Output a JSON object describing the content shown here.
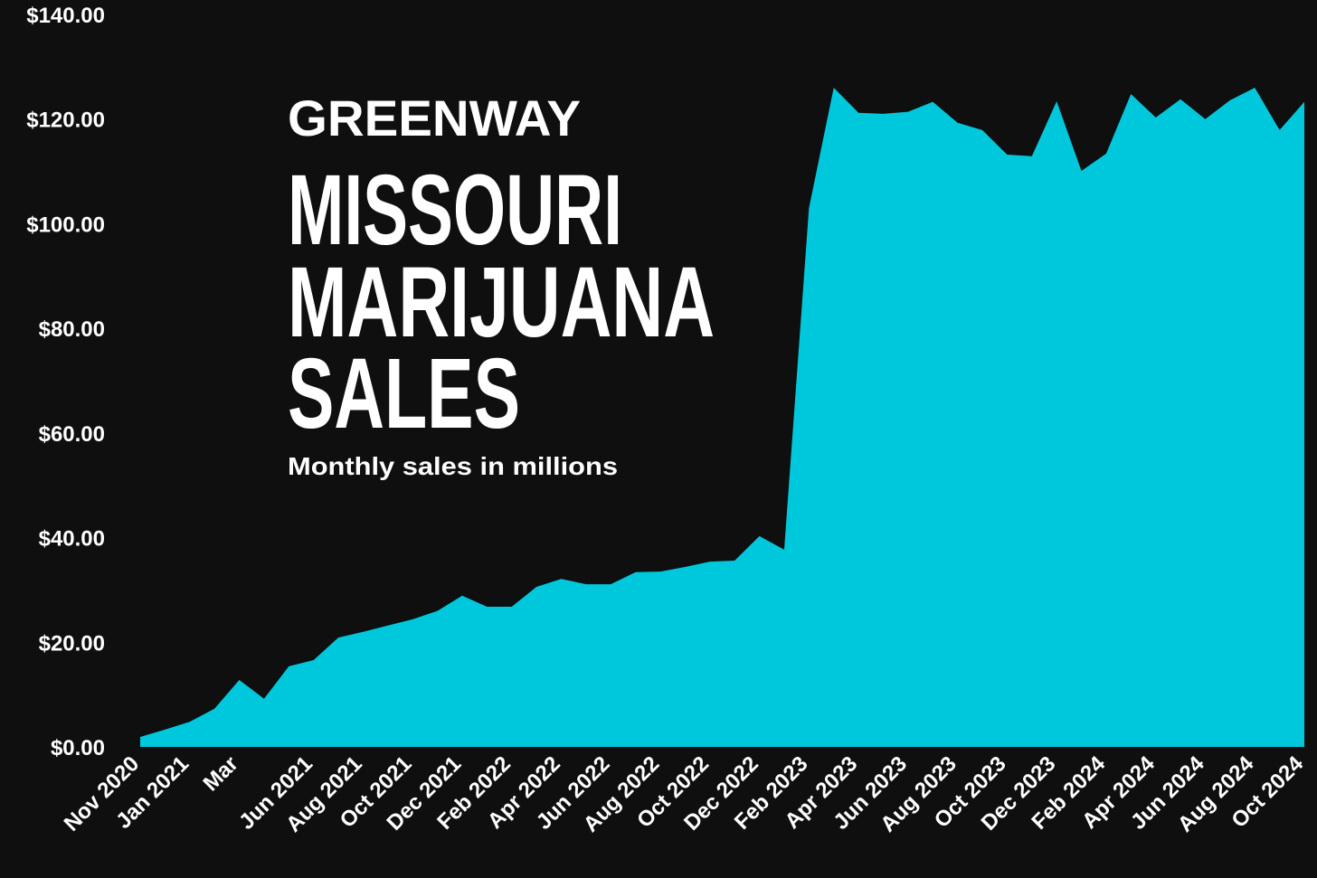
{
  "chart_data": {
    "type": "area",
    "brand": "GREENWAY",
    "title": [
      "MISSOURI",
      "MARIJUANA",
      "SALES"
    ],
    "subtitle": "Monthly sales in millions",
    "categories": [
      "Nov 2020",
      null,
      "Jan 2021",
      null,
      "Mar",
      null,
      null,
      "Jun 2021",
      null,
      "Aug 2021",
      null,
      "Oct 2021",
      null,
      "Dec 2021",
      null,
      "Feb 2022",
      null,
      "Apr 2022",
      null,
      "Jun 2022",
      null,
      "Aug 2022",
      null,
      "Oct 2022",
      null,
      "Dec 2022",
      null,
      "Feb 2023",
      null,
      "Apr 2023",
      null,
      "Jun 2023",
      null,
      "Aug 2023",
      null,
      "Oct 2023",
      null,
      "Dec 2023",
      null,
      "Feb 2024",
      null,
      "Apr 2024",
      null,
      "Jun 2024",
      null,
      "Aug 2024",
      null,
      "Oct 2024"
    ],
    "series": [
      {
        "color": "#00c8dc",
        "values": [
          1.9,
          3.3,
          4.8,
          7.3,
          12.8,
          9.2,
          15.4,
          16.6,
          20.9,
          22,
          23.2,
          24.4,
          26,
          28.9,
          26.8,
          26.8,
          30.6,
          32.1,
          31.1,
          31.1,
          33.4,
          33.5,
          34.4,
          35.4,
          35.6,
          40.3,
          37.7,
          103,
          126,
          121.2,
          121,
          121.4,
          123.3,
          119.3,
          117.9,
          113.2,
          112.9,
          123.4,
          110.1,
          113.4,
          124.8,
          120.3,
          123.8,
          120,
          123.6,
          126,
          117.9,
          123.3
        ]
      }
    ],
    "ylim": [
      0,
      140
    ],
    "yticks": [
      {
        "value": 0,
        "label": "$0.00"
      },
      {
        "value": 20,
        "label": "$20.00"
      },
      {
        "value": 40,
        "label": "$40.00"
      },
      {
        "value": 60,
        "label": "$60.00"
      },
      {
        "value": 80,
        "label": "$80.00"
      },
      {
        "value": 100,
        "label": "$100.00"
      },
      {
        "value": 120,
        "label": "$120.00"
      },
      {
        "value": 140,
        "label": "$140.00"
      }
    ],
    "grid": false
  }
}
